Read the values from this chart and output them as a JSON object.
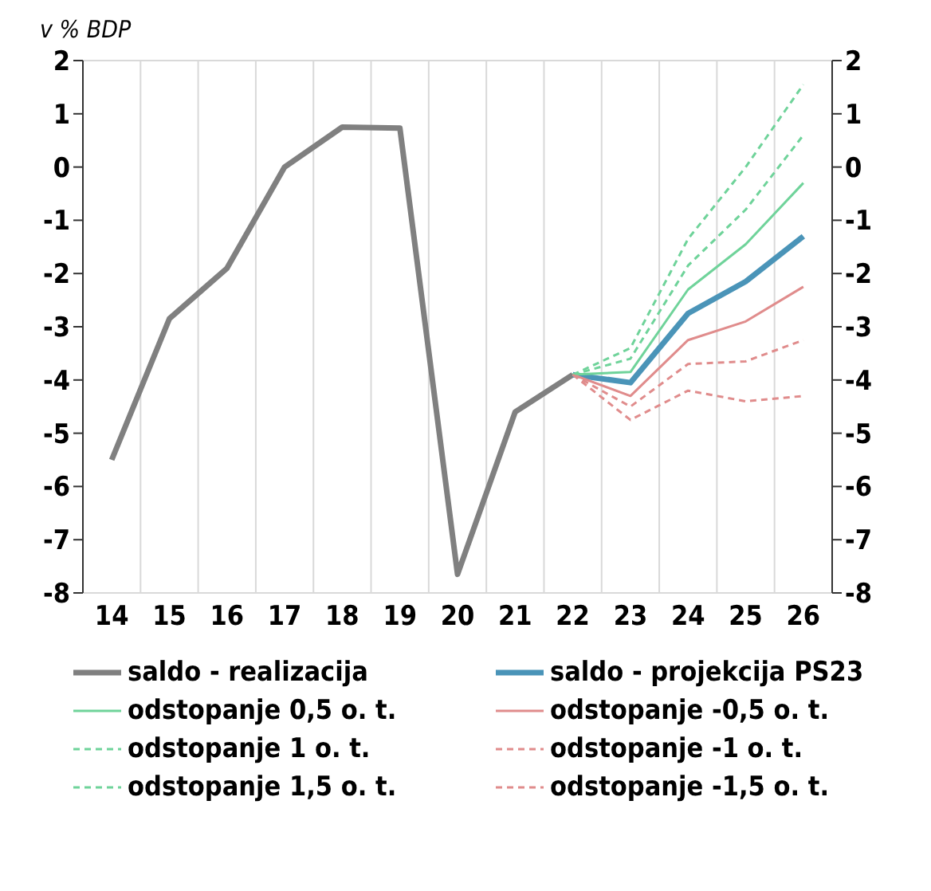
{
  "chart_data": {
    "type": "line",
    "ylabel": "v % BDP",
    "categories": [
      "14",
      "15",
      "16",
      "17",
      "18",
      "19",
      "20",
      "21",
      "22",
      "23",
      "24",
      "25",
      "26"
    ],
    "series": [
      {
        "name": "saldo - realizacija",
        "color": "#808080",
        "line_style": "solid",
        "values": [
          -5.5,
          -2.85,
          -1.9,
          0,
          0.75,
          0.73,
          -7.65,
          -4.6,
          -3.9,
          null,
          null,
          null,
          null
        ]
      },
      {
        "name": "saldo - projekcija PS23",
        "color": "#4a94b8",
        "line_style": "solid",
        "values": [
          null,
          null,
          null,
          null,
          null,
          null,
          null,
          null,
          -3.9,
          -4.05,
          -2.75,
          -2.15,
          -1.3
        ]
      },
      {
        "name": "odstopanje 0,5 o. t.",
        "color": "#6fd39a",
        "line_style": "solid",
        "values": [
          null,
          null,
          null,
          null,
          null,
          null,
          null,
          null,
          -3.9,
          -3.85,
          -2.3,
          -1.45,
          -0.3
        ]
      },
      {
        "name": "odstopanje -0,5 o. t.",
        "color": "#e08c8c",
        "line_style": "solid",
        "values": [
          null,
          null,
          null,
          null,
          null,
          null,
          null,
          null,
          -3.9,
          -4.3,
          -3.25,
          -2.9,
          -2.25
        ]
      },
      {
        "name": "odstopanje 1 o. t.",
        "color": "#6fd39a",
        "line_style": "dashed",
        "values": [
          null,
          null,
          null,
          null,
          null,
          null,
          null,
          null,
          -3.9,
          -3.6,
          -1.85,
          -0.8,
          0.6
        ]
      },
      {
        "name": "odstopanje -1 o. t.",
        "color": "#e08c8c",
        "line_style": "dashed",
        "values": [
          null,
          null,
          null,
          null,
          null,
          null,
          null,
          null,
          -3.9,
          -4.5,
          -3.7,
          -3.65,
          -3.25
        ]
      },
      {
        "name": "odstopanje 1,5 o. t.",
        "color": "#6fd39a",
        "line_style": "dashed",
        "values": [
          null,
          null,
          null,
          null,
          null,
          null,
          null,
          null,
          -3.9,
          -3.4,
          -1.35,
          0,
          1.55
        ]
      },
      {
        "name": "odstopanje -1,5 o. t.",
        "color": "#e08c8c",
        "line_style": "dashed",
        "values": [
          null,
          null,
          null,
          null,
          null,
          null,
          null,
          null,
          -3.9,
          -4.75,
          -4.2,
          -4.4,
          -4.3
        ]
      }
    ],
    "ylim": [
      -8,
      2
    ],
    "yticks": [
      -8,
      -7,
      -6,
      -5,
      -4,
      -3,
      -2,
      -1,
      0,
      1,
      2
    ],
    "y2lim": [
      -8,
      2
    ],
    "y2ticks": [
      -8,
      -7,
      -6,
      -5,
      -4,
      -3,
      -2,
      -1,
      0,
      1,
      2
    ],
    "grid": true,
    "legend": "bottom",
    "marker": "none"
  }
}
